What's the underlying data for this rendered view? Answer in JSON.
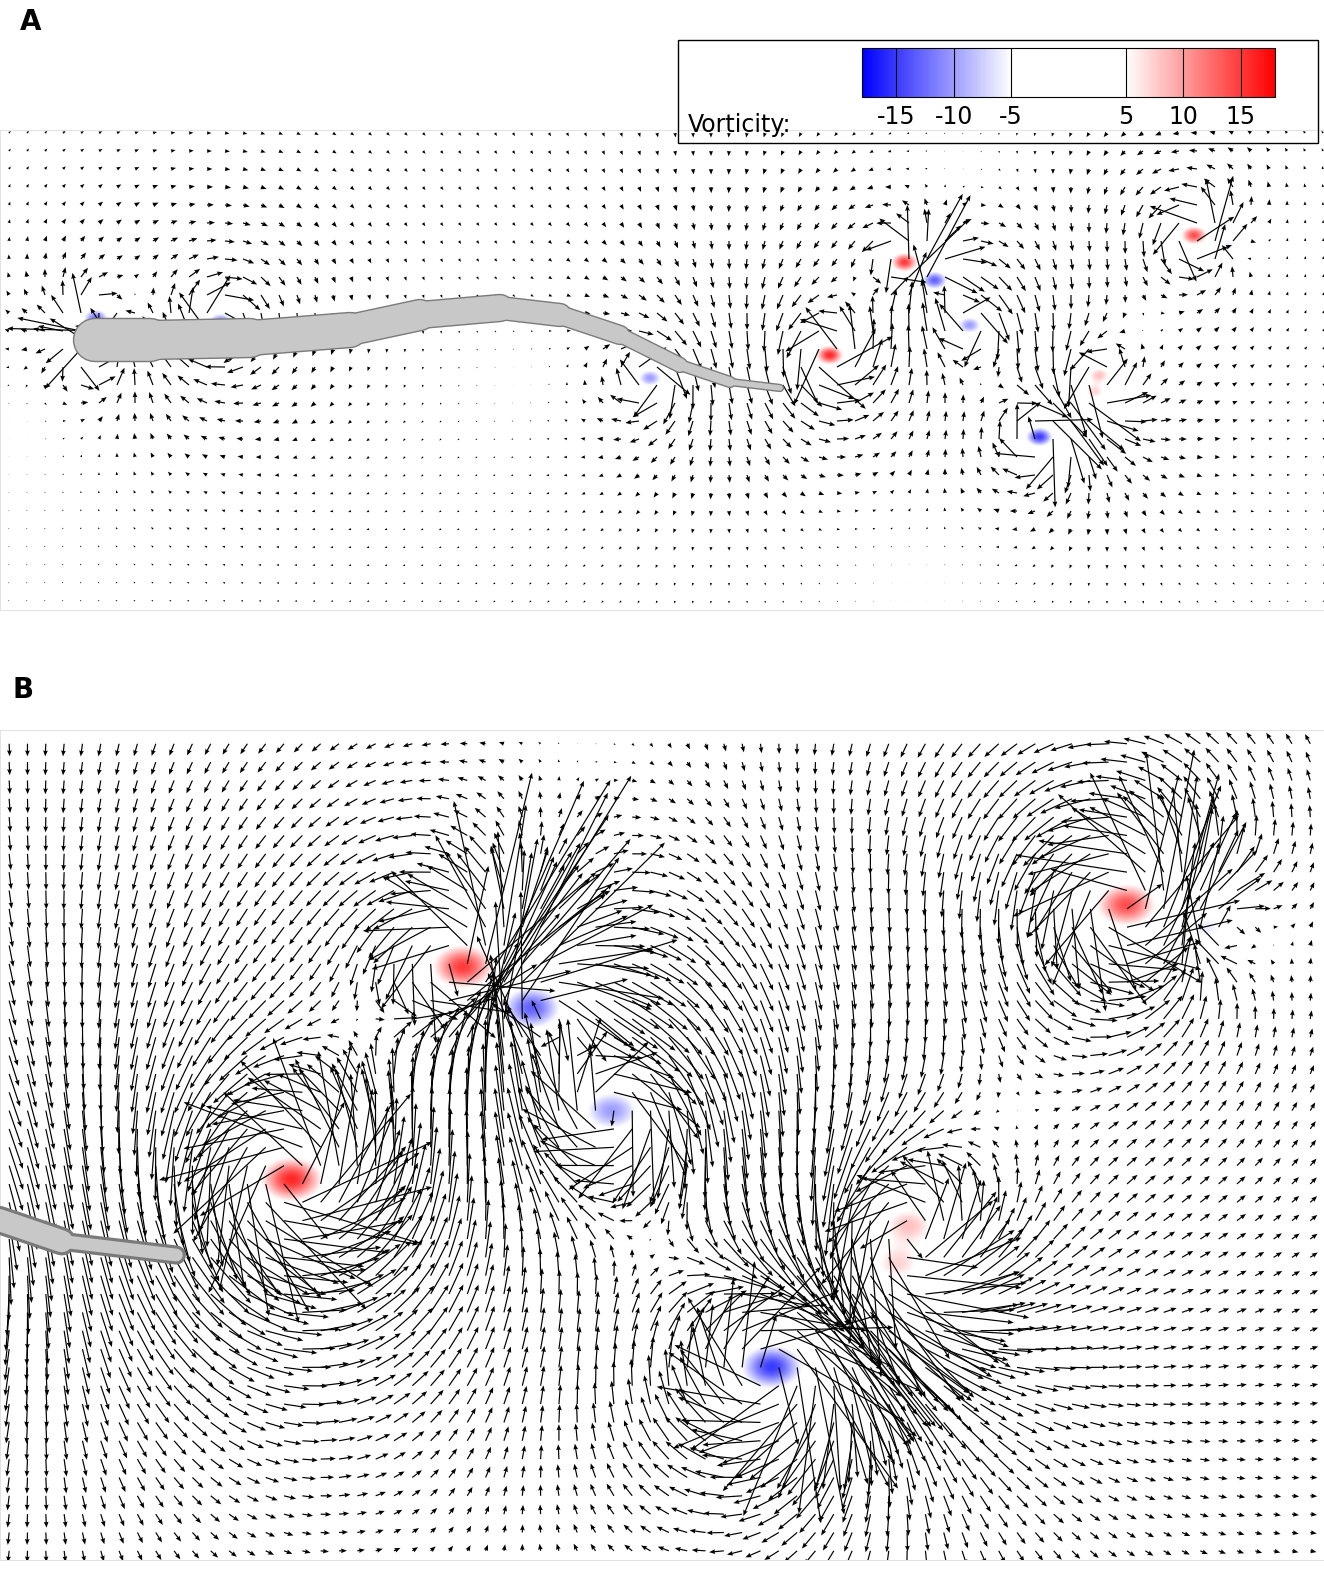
{
  "chart_data": {
    "type": "vector_field",
    "tick_labels": false,
    "panels": [
      {
        "title": "A",
        "xlim": [
          0,
          13.24
        ],
        "ylim": [
          -2.7,
          2.1
        ]
      },
      {
        "title": "B",
        "xlim": [
          7.03,
          12.81
        ],
        "ylim": [
          -1.81,
          1.81
        ]
      }
    ],
    "body": {
      "x": [
        0.95,
        1.5,
        2.5,
        3.5,
        4.2,
        5.0,
        5.6,
        6.2,
        6.8,
        7.3,
        7.8
      ],
      "y": [
        0.0,
        0.0,
        0.02,
        0.1,
        0.25,
        0.32,
        0.25,
        0.05,
        -0.25,
        -0.42,
        -0.48
      ]
    },
    "vortices": {
      "x": [
        0.95,
        0.95,
        2.2,
        6.5,
        8.3,
        9.05,
        9.35,
        9.7,
        10.4,
        11.0,
        10.95,
        11.95,
        12.3
      ],
      "y": [
        -0.12,
        0.22,
        0.18,
        -0.38,
        -0.15,
        0.78,
        0.6,
        0.15,
        -0.97,
        -0.35,
        -0.52,
        1.05,
        0.95
      ],
      "vorticity": [
        15,
        -12,
        -12,
        -10,
        16,
        15,
        -13,
        -10,
        -15,
        8,
        7,
        14,
        -6
      ]
    },
    "colorbar": {
      "label": "Vorticity:",
      "range": [
        -18,
        18
      ],
      "ticks": [
        -15,
        -10,
        -5,
        5,
        10,
        15
      ]
    }
  }
}
